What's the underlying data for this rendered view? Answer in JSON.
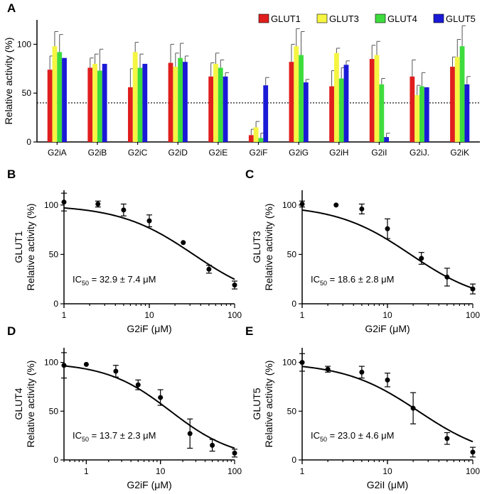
{
  "chart_data": [
    {
      "panel": "A",
      "type": "bar",
      "ylabel": "Relative activity (%)",
      "ylim": [
        0,
        125
      ],
      "yticks": [
        0,
        50,
        100
      ],
      "reference_line": 40,
      "categories": [
        "G2iA",
        "G2iB",
        "G2iC",
        "G2iD",
        "G2iE",
        "G2iF",
        "G2iG",
        "G2iH",
        "G2iI",
        "G2iJ.",
        "G2iK"
      ],
      "series": [
        {
          "name": "GLUT1",
          "color": "#e01e1e",
          "values": [
            74,
            76,
            56,
            81,
            67,
            7,
            82,
            57,
            85,
            67,
            77
          ],
          "errors": [
            14,
            10,
            19,
            19,
            14,
            6,
            18,
            16,
            14,
            17,
            10
          ]
        },
        {
          "name": "GLUT3",
          "color": "#f5f542",
          "values": [
            98,
            80,
            92,
            77,
            80,
            15,
            98,
            91,
            89,
            48,
            87
          ],
          "errors": [
            15,
            10,
            10,
            14,
            11,
            6,
            18,
            5,
            14,
            10,
            18
          ]
        },
        {
          "name": "GLUT4",
          "color": "#3ddc3d",
          "values": [
            92,
            73,
            76,
            86,
            76,
            4,
            89,
            65,
            59,
            57,
            98
          ],
          "errors": [
            18,
            22,
            14,
            15,
            8,
            5,
            24,
            11,
            6,
            14,
            21
          ]
        },
        {
          "name": "GLUT5",
          "color": "#1a1ad6",
          "values": [
            86,
            80,
            80,
            82,
            67,
            58,
            61,
            79,
            5,
            56,
            59
          ],
          "errors": [
            0,
            0,
            0,
            6,
            4,
            8,
            3,
            4,
            4,
            0,
            8
          ]
        }
      ]
    },
    {
      "panel": "B",
      "type": "scatter",
      "xlabel": "G2iF (μM)",
      "ylabel_top": "GLUT1",
      "ylabel": "Relative activity (%)",
      "xscale": "log",
      "xlim": [
        1,
        100
      ],
      "xticks": [
        1,
        10,
        100
      ],
      "ylim": [
        0,
        115
      ],
      "yticks": [
        0,
        50,
        100
      ],
      "ic50_label": "IC",
      "ic50_sub": "50",
      "ic50_text": " = 32.9 ± 7.4 μM",
      "ic50": 32.9,
      "points": [
        [
          1,
          103,
          9
        ],
        [
          2.5,
          101,
          3
        ],
        [
          5,
          95,
          6
        ],
        [
          10,
          84,
          6
        ],
        [
          25,
          62,
          0
        ],
        [
          50,
          35,
          4
        ],
        [
          100,
          19,
          4
        ]
      ]
    },
    {
      "panel": "C",
      "type": "scatter",
      "xlabel": "G2iF (μM)",
      "ylabel_top": "GLUT3",
      "ylabel": "Relative activity (%)",
      "xscale": "log",
      "xlim": [
        1,
        100
      ],
      "xticks": [
        1,
        10,
        100
      ],
      "ylim": [
        0,
        115
      ],
      "yticks": [
        0,
        50,
        100
      ],
      "ic50_label": "IC",
      "ic50_sub": "50",
      "ic50_text": " = 18.6 ± 2.8 μM",
      "ic50": 18.6,
      "points": [
        [
          1,
          101,
          3
        ],
        [
          2.5,
          100,
          0
        ],
        [
          5,
          96,
          5
        ],
        [
          10,
          76,
          10
        ],
        [
          25,
          46,
          6
        ],
        [
          50,
          27,
          9
        ],
        [
          100,
          15,
          5
        ]
      ]
    },
    {
      "panel": "D",
      "type": "scatter",
      "xlabel": "G2iF (μM)",
      "ylabel_top": "GLUT4",
      "ylabel": "Relative activity (%)",
      "xscale": "log",
      "xlim": [
        0.5,
        100
      ],
      "xticks": [
        1,
        10,
        100
      ],
      "ylim": [
        0,
        115
      ],
      "yticks": [
        0,
        50,
        100
      ],
      "ic50_label": "IC",
      "ic50_sub": "50",
      "ic50_text": " = 13.7 ± 2.3 μM",
      "ic50": 13.7,
      "points": [
        [
          0.5,
          97,
          13
        ],
        [
          1,
          98,
          0
        ],
        [
          2.5,
          91,
          6
        ],
        [
          5,
          77,
          5
        ],
        [
          10,
          64,
          8
        ],
        [
          25,
          27,
          15
        ],
        [
          50,
          15,
          6
        ],
        [
          100,
          7,
          4
        ]
      ]
    },
    {
      "panel": "E",
      "type": "scatter",
      "xlabel": "G2iI (μM)",
      "ylabel_top": "GLUT5",
      "ylabel": "Relative activity (%)",
      "xscale": "log",
      "xlim": [
        1,
        100
      ],
      "xticks": [
        1,
        10,
        100
      ],
      "ylim": [
        0,
        115
      ],
      "yticks": [
        0,
        50,
        100
      ],
      "ic50_label": "IC",
      "ic50_sub": "50",
      "ic50_text": " = 23.0 ± 4.6 μM",
      "ic50": 23.0,
      "points": [
        [
          1,
          100,
          9
        ],
        [
          2,
          93,
          3
        ],
        [
          5,
          90,
          6
        ],
        [
          10,
          82,
          7
        ],
        [
          20,
          53,
          16
        ],
        [
          50,
          22,
          6
        ],
        [
          100,
          8,
          5
        ]
      ]
    }
  ]
}
